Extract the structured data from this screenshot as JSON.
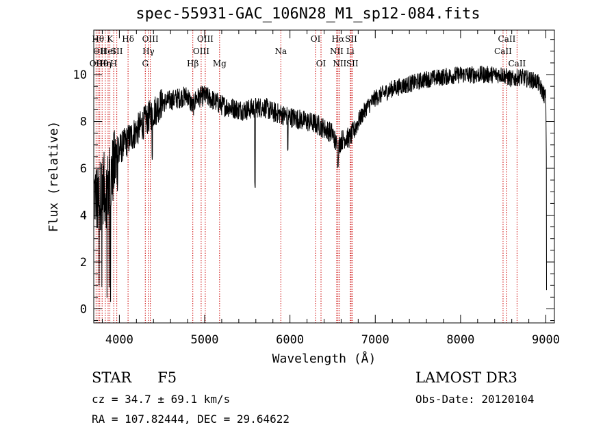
{
  "title": "spec-55931-GAC_106N28_M1_sp12-084.fits",
  "footer": {
    "object_class": "STAR",
    "subclass": "F5",
    "cz": "cz = 34.7 ± 69.1 km/s",
    "coords": "RA = 107.82444, DEC =  29.64622",
    "survey": "LAMOST DR3",
    "obs_date": "Obs-Date: 20120104"
  },
  "colors": {
    "line_marker": "#cc0000",
    "spectrum": "#000000"
  },
  "chart_data": {
    "type": "line",
    "title": "spec-55931-GAC_106N28_M1_sp12-084.fits",
    "xlabel": "Wavelength (Å)",
    "ylabel": "Flux (relative)",
    "xlim": [
      3700,
      9100
    ],
    "ylim": [
      -0.6,
      11.9
    ],
    "xticks": [
      4000,
      5000,
      6000,
      7000,
      8000,
      9000
    ],
    "xtick_labels": [
      "4000",
      "5000",
      "6000",
      "7000",
      "8000",
      "9000"
    ],
    "yticks": [
      0,
      2,
      4,
      6,
      8,
      10
    ],
    "ytick_labels": [
      "0",
      "2",
      "4",
      "6",
      "8",
      "10"
    ],
    "series": [
      {
        "name": "flux",
        "x": [
          3700,
          3750,
          3800,
          3850,
          3900,
          3950,
          4000,
          4100,
          4200,
          4300,
          4400,
          4500,
          4600,
          4700,
          4800,
          4861,
          4900,
          5000,
          5100,
          5200,
          5300,
          5400,
          5500,
          5600,
          5700,
          5800,
          5900,
          6000,
          6100,
          6200,
          6300,
          6400,
          6500,
          6563,
          6600,
          6650,
          6700,
          6750,
          6800,
          6900,
          7000,
          7200,
          7400,
          7600,
          7800,
          8000,
          8200,
          8400,
          8500,
          8600,
          8700,
          8800,
          8900,
          9000
        ],
        "y": [
          5.0,
          4.5,
          5.2,
          5.0,
          5.6,
          6.2,
          6.8,
          7.2,
          7.6,
          8.0,
          8.4,
          8.8,
          8.9,
          9.0,
          9.1,
          8.6,
          9.0,
          9.1,
          8.9,
          8.7,
          8.6,
          8.5,
          8.5,
          8.6,
          8.6,
          8.4,
          8.3,
          8.2,
          8.1,
          8.0,
          7.9,
          7.7,
          7.5,
          6.8,
          7.2,
          7.3,
          7.3,
          7.6,
          8.0,
          8.6,
          9.0,
          9.4,
          9.6,
          9.8,
          9.9,
          10.0,
          10.0,
          10.0,
          10.0,
          9.8,
          9.9,
          9.8,
          9.7,
          9.0
        ]
      }
    ],
    "absorption_dips": [
      {
        "x": 5590,
        "y": 5.1
      },
      {
        "x": 4385,
        "y": 6.3
      },
      {
        "x": 5975,
        "y": 6.6
      },
      {
        "x": 6562,
        "y": 6.0
      }
    ],
    "spectral_lines": [
      {
        "wavelength": 3727,
        "label": "OII",
        "row": 3
      },
      {
        "wavelength": 3750,
        "label": "Hθ",
        "row": 1
      },
      {
        "wavelength": 3770,
        "label": "OII",
        "row": 2
      },
      {
        "wavelength": 3798,
        "label": "Hθ",
        "row": 3
      },
      {
        "wavelength": 3835,
        "label": "Hη",
        "row": 3
      },
      {
        "wavelength": 3868,
        "label": "HeI",
        "row": 2
      },
      {
        "wavelength": 3889,
        "label": "K",
        "row": 1
      },
      {
        "wavelength": 3934,
        "label": "H",
        "row": 3
      },
      {
        "wavelength": 3970,
        "label": "SII",
        "row": 2
      },
      {
        "wavelength": 4102,
        "label": "Hδ",
        "row": 1
      },
      {
        "wavelength": 4304,
        "label": "G",
        "row": 3
      },
      {
        "wavelength": 4341,
        "label": "Hγ",
        "row": 2
      },
      {
        "wavelength": 4363,
        "label": "OIII",
        "row": 1
      },
      {
        "wavelength": 4861,
        "label": "Hβ",
        "row": 3
      },
      {
        "wavelength": 4959,
        "label": "OIII",
        "row": 2
      },
      {
        "wavelength": 5007,
        "label": "OIII",
        "row": 1
      },
      {
        "wavelength": 5175,
        "label": "Mg",
        "row": 3
      },
      {
        "wavelength": 5893,
        "label": "Na",
        "row": 2
      },
      {
        "wavelength": 6300,
        "label": "OI",
        "row": 1
      },
      {
        "wavelength": 6364,
        "label": "OI",
        "row": 3
      },
      {
        "wavelength": 6548,
        "label": "NII",
        "row": 2
      },
      {
        "wavelength": 6563,
        "label": "Hα",
        "row": 1
      },
      {
        "wavelength": 6583,
        "label": "NII",
        "row": 3
      },
      {
        "wavelength": 6707,
        "label": "Li",
        "row": 2
      },
      {
        "wavelength": 6717,
        "label": "SII",
        "row": 1
      },
      {
        "wavelength": 6731,
        "label": "SII",
        "row": 3
      },
      {
        "wavelength": 8498,
        "label": "CaII",
        "row": 2
      },
      {
        "wavelength": 8542,
        "label": "CaII",
        "row": 1
      },
      {
        "wavelength": 8662,
        "label": "CaII",
        "row": 3
      }
    ]
  }
}
